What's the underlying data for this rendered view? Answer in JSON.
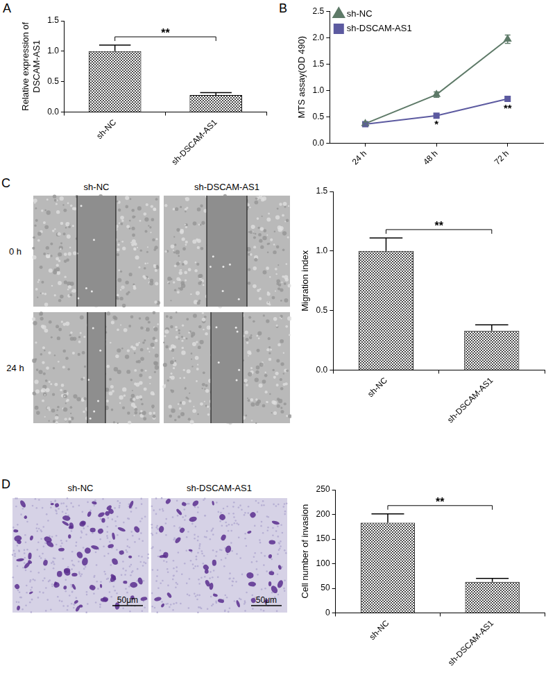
{
  "chart_data": [
    {
      "panel": "A",
      "type": "bar",
      "categories": [
        "sh-NC",
        "sh-DSCAM-AS1"
      ],
      "values": [
        1.0,
        0.28
      ],
      "errors": [
        0.1,
        0.04
      ],
      "color": "#4d4d4d",
      "y_label": [
        "Relative expression of",
        "DSCAM-AS1"
      ],
      "ylim": [
        0,
        1.5
      ],
      "yticks": [
        {
          "value": 0,
          "label": "0.0"
        },
        {
          "value": 0.5,
          "label": "0.5"
        },
        {
          "value": 1,
          "label": "1.0"
        },
        {
          "value": 1.5,
          "label": "1.5"
        }
      ],
      "grid": false,
      "annotation": "**"
    },
    {
      "panel": "B",
      "type": "line",
      "categories": [
        "24 h",
        "48 h",
        "72 h"
      ],
      "series": [
        {
          "name": "sh-NC",
          "color": "#5e7a68",
          "marker": "triangle",
          "values": [
            0.37,
            0.92,
            1.97
          ],
          "errors": [
            0.02,
            0.05,
            0.08
          ]
        },
        {
          "name": "sh-DSCAM-AS1",
          "color": "#5c5aa0",
          "marker": "square",
          "values": [
            0.36,
            0.52,
            0.84
          ],
          "errors": [
            0.02,
            0.03,
            0.05
          ]
        }
      ],
      "y_label": "MTS assay(OD 490)",
      "ylim": [
        0,
        2.5
      ],
      "yticks": [
        {
          "value": 0,
          "label": "0.0"
        },
        {
          "value": 0.5,
          "label": "0.5"
        },
        {
          "value": 1,
          "label": "1.0"
        },
        {
          "value": 1.5,
          "label": "1.5"
        },
        {
          "value": 2,
          "label": "2.0"
        },
        {
          "value": 2.5,
          "label": "2.5"
        }
      ],
      "grid": false,
      "legend": "top-left",
      "annotations": [
        {
          "category": "48 h",
          "text": "*"
        },
        {
          "category": "72 h",
          "text": "**"
        }
      ]
    },
    {
      "type": "bar",
      "categories": [
        "sh-NC",
        "sh-DSCAM-AS1"
      ],
      "values": [
        1.0,
        0.33
      ],
      "errors": [
        0.11,
        0.05
      ],
      "color": "#4d4d4d",
      "y_label": "Migration index",
      "ylim": [
        0,
        1.5
      ],
      "yticks": [
        {
          "value": 0,
          "label": "0.0"
        },
        {
          "value": 0.5,
          "label": "0.5"
        },
        {
          "value": 1,
          "label": "1.0"
        },
        {
          "value": 1.5,
          "label": "1.5"
        }
      ],
      "grid": false,
      "annotation": "**"
    },
    {
      "type": "bar",
      "categories": [
        "sh-NC",
        "sh-DSCAM-AS1"
      ],
      "values": [
        183,
        63
      ],
      "errors": [
        18,
        7
      ],
      "color": "#4d4d4d",
      "y_label": "Cell number of invasion",
      "ylim": [
        0,
        250
      ],
      "yticks": [
        0,
        50,
        100,
        150,
        200,
        250
      ],
      "grid": false,
      "annotation": "**"
    }
  ],
  "image_panels": [
    {
      "panel": "C",
      "columns": [
        "sh-NC",
        "sh-DSCAM-AS1"
      ],
      "rows": [
        "0 h",
        "24 h"
      ]
    },
    {
      "panel": "D",
      "columns": [
        "sh-NC",
        "sh-DSCAM-AS1"
      ],
      "scale_bar": "50μm"
    }
  ]
}
